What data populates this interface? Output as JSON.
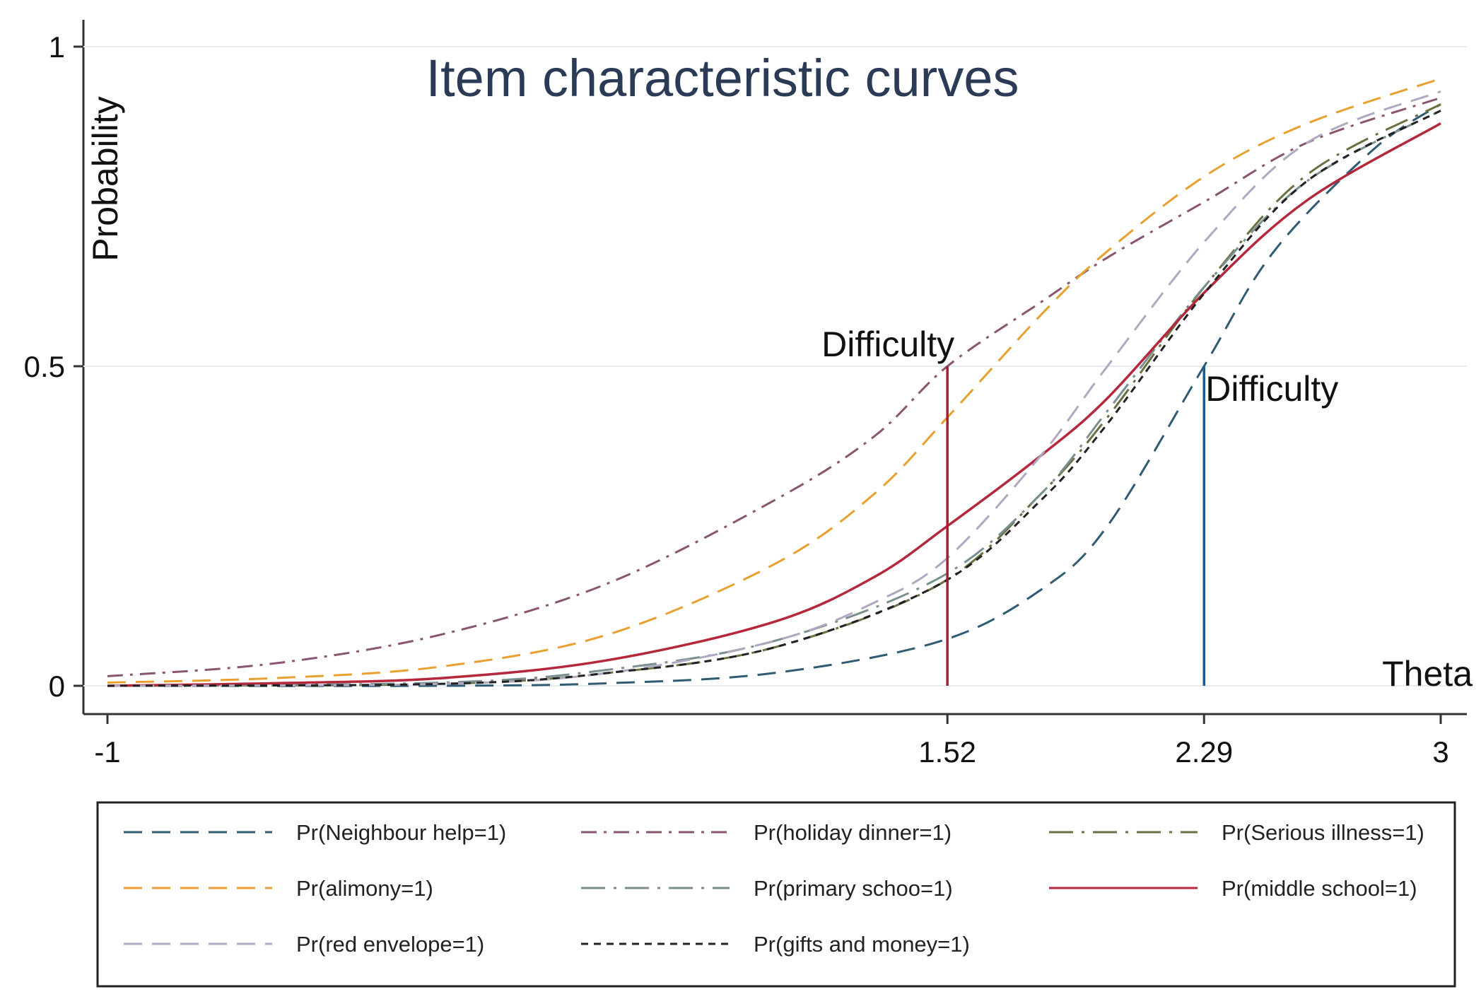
{
  "chart_data": {
    "type": "line",
    "title": "Item characteristic curves",
    "xlabel": "Theta",
    "ylabel": "Probability",
    "xlim": [
      -1,
      3
    ],
    "ylim": [
      0,
      1
    ],
    "x_ticks": [
      {
        "value": -1,
        "label": "-1"
      },
      {
        "value": 1.52,
        "label": "1.52"
      },
      {
        "value": 2.29,
        "label": "2.29"
      },
      {
        "value": 3,
        "label": "3"
      }
    ],
    "y_ticks": [
      {
        "value": 0,
        "label": "0"
      },
      {
        "value": 0.5,
        "label": "0.5"
      },
      {
        "value": 1,
        "label": "1"
      }
    ],
    "grid": "horizontal",
    "legend_position": "bottom",
    "series": [
      {
        "name": "Pr(Neighbour help=1)",
        "color": "#2f5c73",
        "dash": "long-dash",
        "x": [
          -1,
          0,
          0.5,
          1.0,
          1.5,
          1.8,
          2.0,
          2.29,
          2.5,
          2.8,
          3.0
        ],
        "y": [
          0.0,
          0.0,
          0.004,
          0.02,
          0.07,
          0.15,
          0.25,
          0.5,
          0.68,
          0.84,
          0.91
        ]
      },
      {
        "name": "Pr(holiday dinner=1)",
        "color": "#8a5570",
        "dash": "dash-dot",
        "x": [
          -1,
          -0.5,
          0,
          0.5,
          1.0,
          1.3,
          1.52,
          1.8,
          2.0,
          2.3,
          2.6,
          3.0
        ],
        "y": [
          0.015,
          0.035,
          0.08,
          0.16,
          0.29,
          0.39,
          0.5,
          0.6,
          0.67,
          0.76,
          0.85,
          0.92
        ]
      },
      {
        "name": "Pr(Serious illness=1)",
        "color": "#6a7040",
        "dash": "long-dash-dot",
        "x": [
          -1,
          0,
          0.5,
          1.0,
          1.5,
          1.8,
          2.0,
          2.3,
          2.6,
          3.0
        ],
        "y": [
          0.0,
          0.003,
          0.02,
          0.06,
          0.16,
          0.3,
          0.42,
          0.63,
          0.8,
          0.91
        ]
      },
      {
        "name": "Pr(alimony=1)",
        "color": "#e8a030",
        "dash": "long-dash",
        "x": [
          -1,
          -0.5,
          0,
          0.5,
          1.0,
          1.3,
          1.52,
          1.8,
          2.0,
          2.3,
          2.6,
          3.0
        ],
        "y": [
          0.005,
          0.012,
          0.03,
          0.08,
          0.19,
          0.3,
          0.42,
          0.58,
          0.68,
          0.8,
          0.88,
          0.95
        ]
      },
      {
        "name": "Pr(primary schoo=1)",
        "color": "#7a9090",
        "dash": "long-dash-dot",
        "x": [
          -1,
          0,
          0.5,
          1.0,
          1.5,
          1.8,
          2.0,
          2.3,
          2.6,
          3.0
        ],
        "y": [
          0.0,
          0.005,
          0.025,
          0.07,
          0.17,
          0.3,
          0.43,
          0.63,
          0.79,
          0.9
        ]
      },
      {
        "name": "Pr(middle school=1)",
        "color": "#b5283c",
        "dash": "solid",
        "x": [
          -1,
          -0.5,
          0,
          0.5,
          1.0,
          1.3,
          1.52,
          1.8,
          2.0,
          2.3,
          2.6,
          3.0
        ],
        "y": [
          0.0,
          0.004,
          0.012,
          0.04,
          0.1,
          0.17,
          0.25,
          0.36,
          0.45,
          0.62,
          0.76,
          0.88
        ]
      },
      {
        "name": "Pr(red envelope=1)",
        "color": "#b0a8c0",
        "dash": "long-dash",
        "x": [
          -1,
          0,
          0.5,
          1.0,
          1.3,
          1.52,
          1.8,
          2.0,
          2.3,
          2.6,
          3.0
        ],
        "y": [
          0.0,
          0.003,
          0.02,
          0.07,
          0.13,
          0.2,
          0.36,
          0.5,
          0.7,
          0.85,
          0.93
        ]
      },
      {
        "name": "Pr(gifts and money=1)",
        "color": "#222222",
        "dash": "short-dash",
        "x": [
          -1,
          0,
          0.5,
          1.0,
          1.5,
          1.8,
          2.0,
          2.3,
          2.6,
          3.0
        ],
        "y": [
          0.0,
          0.003,
          0.02,
          0.06,
          0.16,
          0.29,
          0.41,
          0.62,
          0.79,
          0.9
        ]
      }
    ],
    "reference_lines": [
      {
        "x": 1.52,
        "y_top": 0.5,
        "color": "#a02030",
        "label": "Difficulty"
      },
      {
        "x": 2.29,
        "y_top": 0.5,
        "color": "#1f5a8a",
        "label": "Difficulty"
      }
    ]
  }
}
